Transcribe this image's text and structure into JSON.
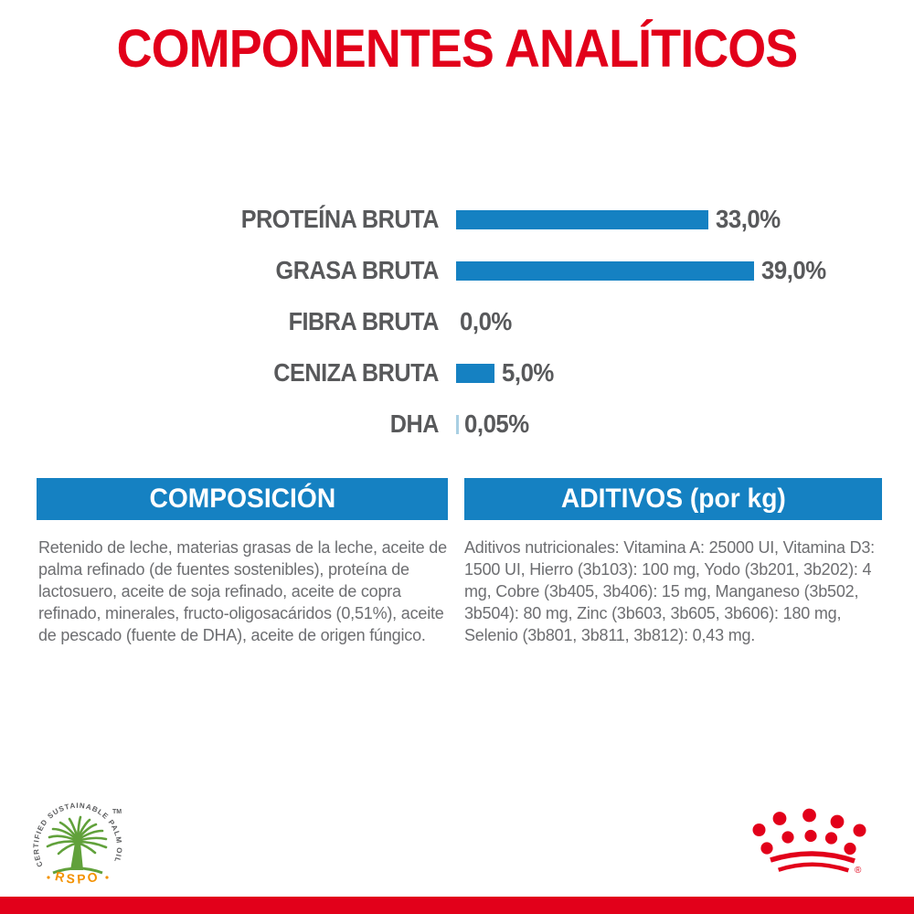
{
  "title": "COMPONENTES ANALÍTICOS",
  "colors": {
    "brand_red": "#e2001a",
    "bar_blue": "#1581c2",
    "dha_bar_light_blue": "#a9cfe3",
    "label_gray": "#58595b",
    "body_gray": "#6d6e71",
    "rspo_green": "#61a13b",
    "rspo_orange": "#f39200"
  },
  "chart_data": {
    "type": "bar",
    "orientation": "horizontal",
    "title": "COMPONENTES ANALÍTICOS",
    "categories": [
      "PROTEÍNA BRUTA",
      "GRASA BRUTA",
      "FIBRA BRUTA",
      "CENIZA BRUTA",
      "DHA"
    ],
    "values": [
      33.0,
      39.0,
      0.0,
      5.0,
      0.05
    ],
    "value_labels": [
      "33,0%",
      "39,0%",
      "0,0%",
      "5,0%",
      "0,05%"
    ],
    "unit": "percent",
    "xlim": [
      0,
      39
    ],
    "grid": false,
    "legend": false,
    "bar_color": "#1581c2"
  },
  "composition_section": {
    "header": "COMPOSICIÓN",
    "body": "Retenido de leche, materias grasas de la leche, aceite de palma refinado (de fuentes sostenibles), proteína de lactosuero, aceite de soja refinado, aceite de copra refinado, minerales, fructo-oligosacáridos (0,51%), aceite de pescado (fuente de DHA), aceite de origen fúngico."
  },
  "additives_section": {
    "header": "ADITIVOS (por kg)",
    "body": "Aditivos nutricionales: Vitamina A: 25000 UI, Vitamina D3: 1500 UI, Hierro (3b103): 100 mg, Yodo (3b201, 3b202): 4 mg, Cobre (3b405, 3b406): 15 mg, Manganeso (3b502, 3b504): 80 mg, Zinc (3b603, 3b605, 3b606): 180 mg, Selenio (3b801, 3b811, 3b812): 0,43 mg."
  },
  "footer": {
    "rspo": {
      "ring_text": "CERTIFIED SUSTAINABLE PALM OIL",
      "trademark": "TM",
      "label": "RSPO"
    },
    "brand": {
      "registered": "®"
    }
  }
}
